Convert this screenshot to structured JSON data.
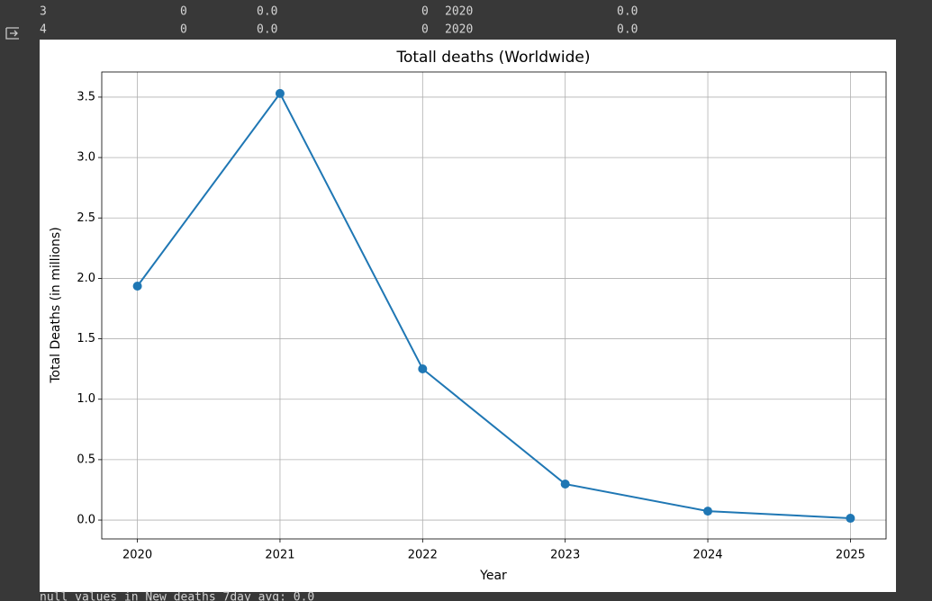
{
  "output_rows": [
    [
      "3",
      "0",
      "0.0",
      "0",
      "2020",
      "0.0"
    ],
    [
      "4",
      "0",
      "0.0",
      "0",
      "2020",
      "0.0"
    ]
  ],
  "footer_text": "null values in New_deaths_7day_avg: 0.0",
  "chart_data": {
    "type": "line",
    "title": "Totall deaths (Worldwide)",
    "xlabel": "Year",
    "ylabel": "Total Deaths (in millions)",
    "x": [
      2020,
      2021,
      2022,
      2023,
      2024,
      2025
    ],
    "series": [
      {
        "color": "#1f77b4",
        "values": [
          1.936,
          3.53,
          1.251,
          0.298,
          0.074,
          0.015
        ]
      }
    ],
    "xlim": [
      2019.75,
      2025.25
    ],
    "xticks": [
      2020,
      2021,
      2022,
      2023,
      2024,
      2025
    ],
    "ylim": [
      -0.156,
      3.708
    ],
    "yticks": [
      {
        "value": 0,
        "label": "0.0"
      },
      0.5,
      {
        "value": 1,
        "label": "1.0"
      },
      1.5,
      {
        "value": 2,
        "label": "2.0"
      },
      2.5,
      {
        "value": 3,
        "label": "3.0"
      },
      3.5
    ],
    "grid": true,
    "markers": true
  }
}
